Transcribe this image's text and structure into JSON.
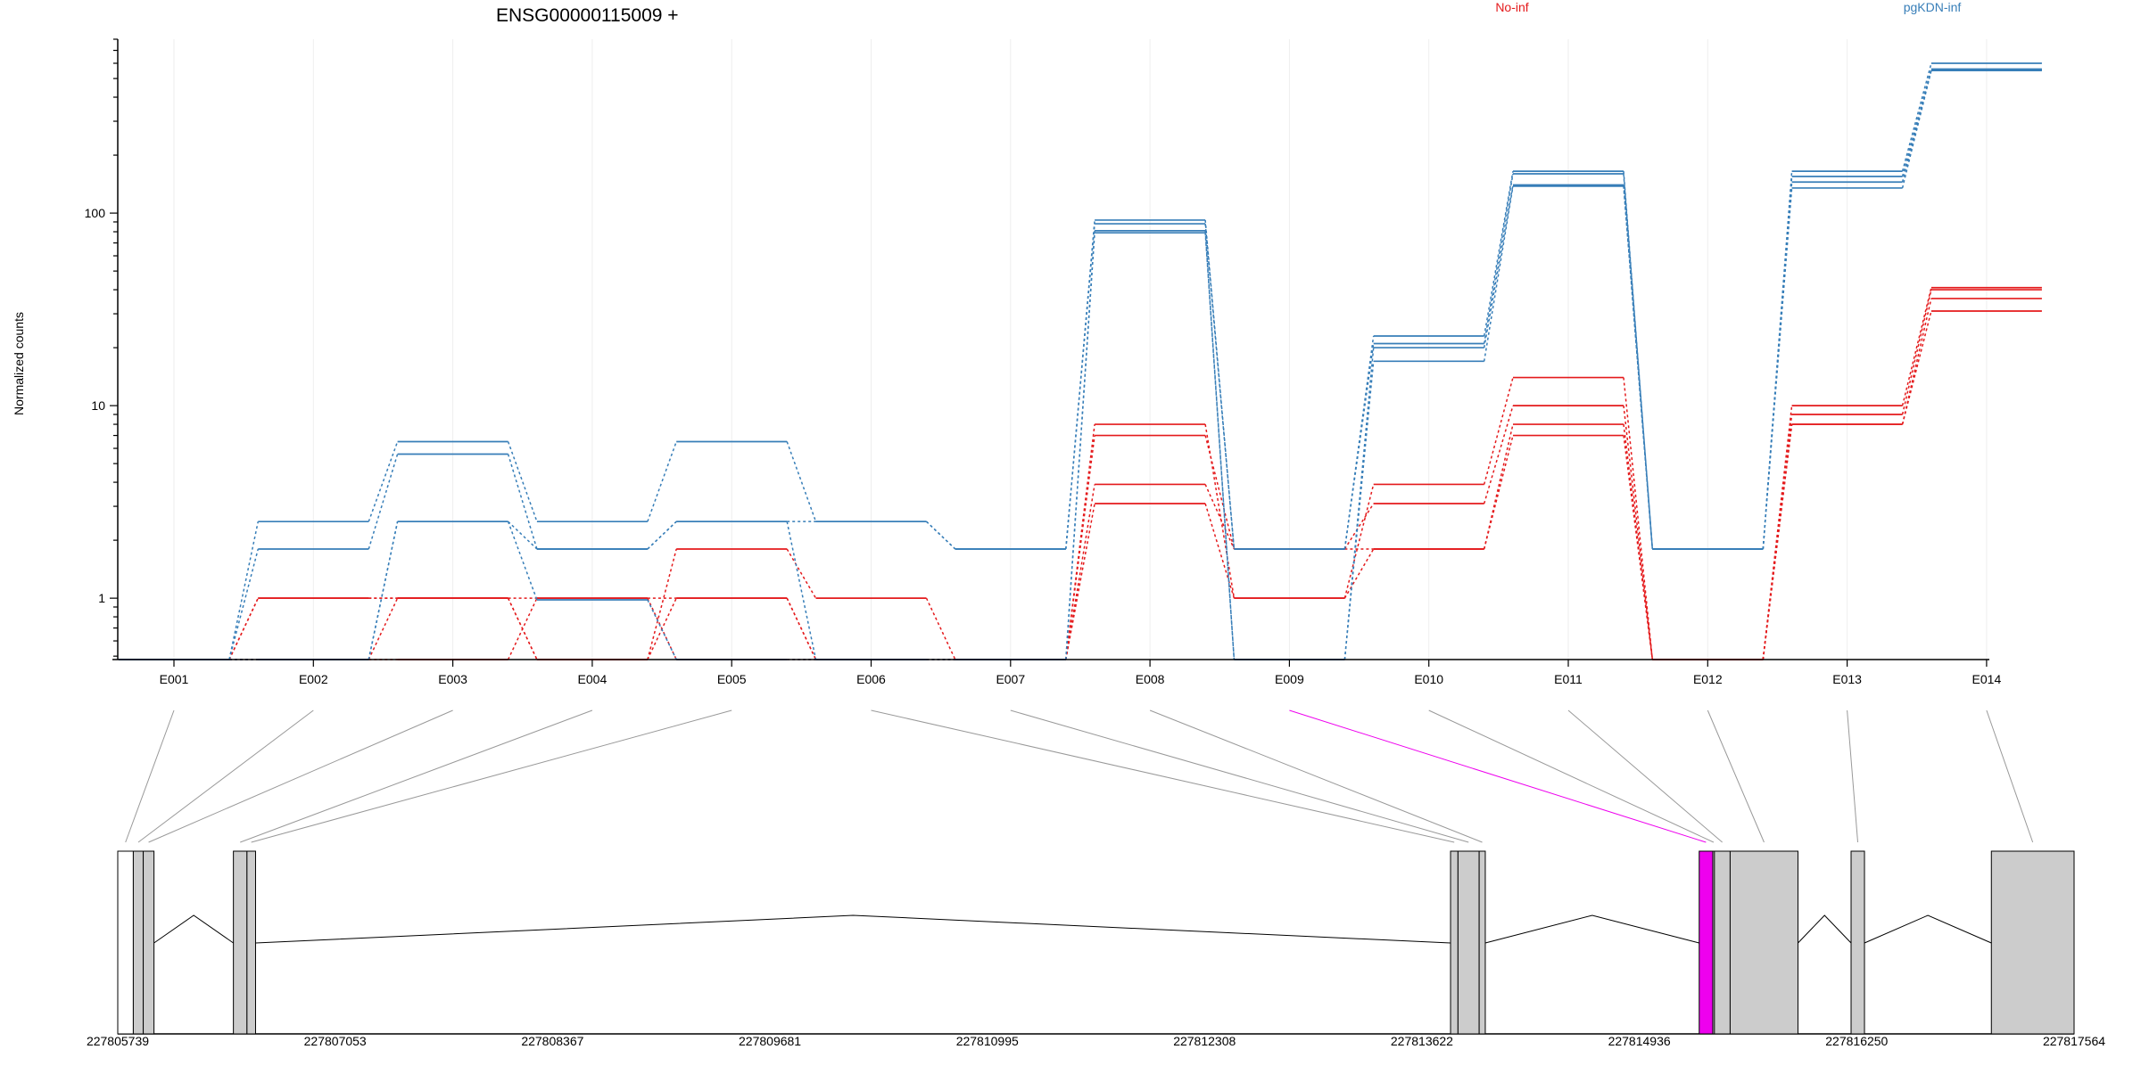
{
  "title": "ENSG00000115009 +",
  "legend": [
    {
      "name": "No-inf",
      "color": "#e41a1c"
    },
    {
      "name": "pgKDN-inf",
      "color": "#377eb8"
    }
  ],
  "colors": {
    "highlight": "#ee00ee",
    "exon_fill": "#cccccc",
    "grid": "#eeeeee",
    "axis": "#000000",
    "connector": "#999999"
  },
  "chart_data": {
    "type": "line",
    "ylabel": "Normalized counts",
    "yscale": "log",
    "ylim": [
      0.48,
      800
    ],
    "yticks": [
      1,
      10,
      100
    ],
    "ytick_labels": [
      "1",
      "10",
      "100"
    ],
    "categories": [
      "E001",
      "E002",
      "E003",
      "E004",
      "E005",
      "E006",
      "E007",
      "E008",
      "E009",
      "E010",
      "E011",
      "E012",
      "E013",
      "E014"
    ],
    "highlight_category": "E009",
    "series": [
      {
        "group": "No-inf",
        "values": [
          0.48,
          1,
          1,
          0.48,
          1.8,
          1,
          0.48,
          8,
          1,
          3.9,
          14,
          0.48,
          10,
          41
        ]
      },
      {
        "group": "No-inf",
        "values": [
          0.48,
          1,
          1,
          0.48,
          1,
          0.48,
          0.48,
          7,
          1.8,
          3.1,
          10,
          0.48,
          9,
          40
        ]
      },
      {
        "group": "No-inf",
        "values": [
          0.48,
          0.48,
          1,
          1,
          1,
          0.48,
          0.48,
          3.9,
          1.8,
          1.8,
          8,
          0.48,
          8,
          36
        ]
      },
      {
        "group": "No-inf",
        "values": [
          0.48,
          0.48,
          0.48,
          1,
          0.48,
          0.48,
          0.48,
          3.1,
          1,
          1.8,
          7,
          0.48,
          8,
          31
        ]
      },
      {
        "group": "pgKDN-inf",
        "values": [
          0.48,
          2.5,
          6.5,
          2.5,
          6.5,
          2.5,
          1.8,
          92,
          1.8,
          23,
          165,
          1.8,
          165,
          600
        ]
      },
      {
        "group": "pgKDN-inf",
        "values": [
          0.48,
          1.8,
          5.6,
          1.8,
          2.5,
          2.5,
          1.8,
          88,
          1.8,
          21,
          160,
          1.8,
          155,
          560
        ]
      },
      {
        "group": "pgKDN-inf",
        "values": [
          0.48,
          0.48,
          2.5,
          1.8,
          2.5,
          0.48,
          0.48,
          81,
          0.48,
          20,
          140,
          1.8,
          145,
          555
        ]
      },
      {
        "group": "pgKDN-inf",
        "values": [
          0.48,
          0.48,
          2.5,
          0.98,
          0.48,
          0.48,
          0.48,
          79,
          0.48,
          17,
          138,
          1.8,
          135,
          550
        ]
      }
    ]
  },
  "gene_model": {
    "coord_range": [
      227805739,
      227817564
    ],
    "coord_ticks": [
      227805739,
      227807053,
      227808367,
      227809681,
      227810995,
      227812308,
      227813622,
      227814936,
      227816250,
      227817564
    ],
    "coord_labels": [
      "227805739",
      "227807053",
      "227808367",
      "227809681",
      "227810995",
      "227812308",
      "227813622",
      "227814936",
      "227816250",
      "227817564"
    ],
    "exons": [
      {
        "id": "E001",
        "start": 227805739,
        "end": 227805833,
        "fill": "white"
      },
      {
        "id": "E002",
        "start": 227805833,
        "end": 227805893,
        "fill": "gray"
      },
      {
        "id": "E003",
        "start": 227805893,
        "end": 227805958,
        "fill": "gray"
      },
      {
        "id": "E004",
        "start": 227806438,
        "end": 227806520,
        "fill": "gray"
      },
      {
        "id": "E005",
        "start": 227806520,
        "end": 227806572,
        "fill": "gray"
      },
      {
        "id": "E006",
        "start": 227813795,
        "end": 227813840,
        "fill": "gray"
      },
      {
        "id": "E007",
        "start": 227813840,
        "end": 227813968,
        "fill": "gray"
      },
      {
        "id": "E008",
        "start": 227813968,
        "end": 227814005,
        "fill": "gray"
      },
      {
        "id": "E009",
        "start": 227815298,
        "end": 227815380,
        "fill": "highlight"
      },
      {
        "id": "E010",
        "start": 227815380,
        "end": 227815390,
        "fill": "gray"
      },
      {
        "id": "E011",
        "start": 227815390,
        "end": 227815485,
        "fill": "gray"
      },
      {
        "id": "E012",
        "start": 227815485,
        "end": 227815895,
        "fill": "gray"
      },
      {
        "id": "E013",
        "start": 227816216,
        "end": 227816297,
        "fill": "gray"
      },
      {
        "id": "E014",
        "start": 227817064,
        "end": 227817564,
        "fill": "gray"
      }
    ],
    "introns": [
      [
        227805958,
        227806438
      ],
      [
        227806572,
        227813795
      ],
      [
        227814005,
        227815298
      ],
      [
        227815895,
        227816216
      ],
      [
        227816297,
        227817064
      ]
    ]
  }
}
